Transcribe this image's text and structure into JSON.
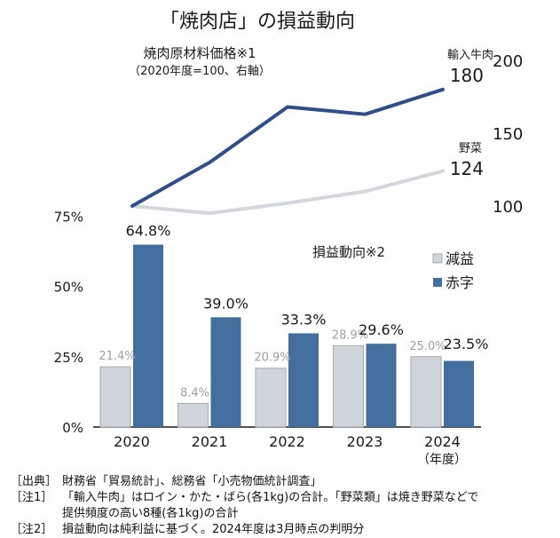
{
  "chart_data": [
    {
      "type": "line",
      "title": "「焼肉店」の損益動向",
      "subtitle": "焼肉原材料価格※1",
      "subtitle_note": "（2020年度=100、右軸）",
      "x": [
        "2020",
        "2021",
        "2022",
        "2023",
        "2024"
      ],
      "y_axis": "right",
      "ylim": [
        100,
        200
      ],
      "yticks": [
        "100",
        "150",
        "200"
      ],
      "series": [
        {
          "name": "輸入牛肉",
          "values": [
            100,
            130,
            168,
            163,
            180
          ],
          "end_label": "180",
          "color": "#2f4f8a"
        },
        {
          "name": "野菜",
          "values": [
            100,
            95,
            102,
            110,
            124
          ],
          "end_label": "124",
          "color": "#d3d7dc"
        }
      ]
    },
    {
      "type": "bar",
      "title": "損益動向※2",
      "categories": [
        "2020",
        "2021",
        "2022",
        "2023",
        "2024"
      ],
      "xlabel_suffix": "（年度）",
      "ylim": [
        0,
        75
      ],
      "yticks": [
        "0%",
        "25%",
        "50%",
        "75%"
      ],
      "legend_position": "top-right",
      "series": [
        {
          "name": "減益",
          "values": [
            21.4,
            8.4,
            20.9,
            28.9,
            25.0
          ],
          "labels": [
            "21.4%",
            "8.4%",
            "20.9%",
            "28.9%",
            "25.0%"
          ],
          "color": "#cfd5da"
        },
        {
          "name": "赤字",
          "values": [
            64.8,
            39.0,
            33.3,
            29.6,
            23.5
          ],
          "labels": [
            "64.8%",
            "39.0%",
            "33.3%",
            "29.6%",
            "23.5%"
          ],
          "color": "#426f9e"
        }
      ]
    }
  ],
  "notes": {
    "source_tag": "［出典］",
    "source_text": "財務省「貿易統計」、総務省「小売物価統計調査」",
    "note1_tag": "［注1］",
    "note1_text": "「輸入牛肉」はロイン・かた・ばら(各1kg)の合計。「野菜類」は焼き野菜などで",
    "note1_cont": "提供頻度の高い8種(各1kg)の合計",
    "note2_tag": "［注2］",
    "note2_text": "損益動向は純利益に基づく。2024年度は3月時点の判明分"
  }
}
